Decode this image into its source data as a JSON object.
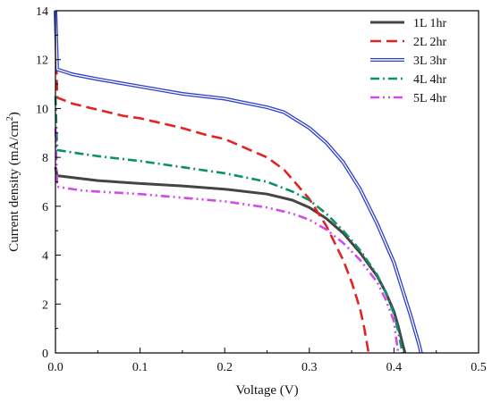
{
  "chart_data": {
    "type": "line",
    "xlabel": "Voltage (V)",
    "ylabel": "Current density (mA/cm²)",
    "ylabel_parts": {
      "text": "Current density (mA/cm",
      "superscript": "2",
      "suffix": ")"
    },
    "xlim": [
      0,
      0.5
    ],
    "ylim": [
      0,
      14
    ],
    "x_ticks": [
      0,
      0.1,
      0.2,
      0.3,
      0.4,
      0.5
    ],
    "x_tick_labels": [
      "0.0",
      "0.1",
      "0.2",
      "0.3",
      "0.4",
      "0.5"
    ],
    "y_ticks": [
      0,
      2,
      4,
      6,
      8,
      10,
      12,
      14
    ],
    "y_tick_labels": [
      "0",
      "2",
      "4",
      "6",
      "8",
      "10",
      "12",
      "14"
    ],
    "grid": false,
    "legend_position": "top-right",
    "series": [
      {
        "name": "1L  1hr",
        "color": "#444444",
        "style": "solid",
        "spike_to": 7.6,
        "points": [
          [
            0,
            7.25
          ],
          [
            0.05,
            7.05
          ],
          [
            0.1,
            6.93
          ],
          [
            0.15,
            6.83
          ],
          [
            0.2,
            6.7
          ],
          [
            0.25,
            6.5
          ],
          [
            0.28,
            6.25
          ],
          [
            0.3,
            5.95
          ],
          [
            0.32,
            5.5
          ],
          [
            0.34,
            4.9
          ],
          [
            0.36,
            4.1
          ],
          [
            0.38,
            3.15
          ],
          [
            0.39,
            2.5
          ],
          [
            0.4,
            1.7
          ],
          [
            0.405,
            1.1
          ],
          [
            0.41,
            0.4
          ],
          [
            0.413,
            0
          ]
        ]
      },
      {
        "name": "2L  2hr",
        "color": "#e32222",
        "style": "dash",
        "spike_to": 13.8,
        "points": [
          [
            0,
            10.45
          ],
          [
            0.02,
            10.2
          ],
          [
            0.05,
            9.95
          ],
          [
            0.08,
            9.7
          ],
          [
            0.1,
            9.6
          ],
          [
            0.15,
            9.2
          ],
          [
            0.18,
            8.9
          ],
          [
            0.2,
            8.75
          ],
          [
            0.25,
            8.0
          ],
          [
            0.27,
            7.5
          ],
          [
            0.3,
            6.3
          ],
          [
            0.32,
            5.2
          ],
          [
            0.34,
            3.8
          ],
          [
            0.35,
            2.9
          ],
          [
            0.36,
            1.8
          ],
          [
            0.365,
            1.0
          ],
          [
            0.37,
            0
          ]
        ]
      },
      {
        "name": "3L  3hr",
        "color": "#2d3fd1",
        "style": "double",
        "spike_to": 14,
        "points": [
          [
            0,
            11.6
          ],
          [
            0.02,
            11.4
          ],
          [
            0.05,
            11.2
          ],
          [
            0.1,
            10.9
          ],
          [
            0.15,
            10.6
          ],
          [
            0.2,
            10.4
          ],
          [
            0.25,
            10.05
          ],
          [
            0.27,
            9.85
          ],
          [
            0.3,
            9.2
          ],
          [
            0.32,
            8.6
          ],
          [
            0.34,
            7.8
          ],
          [
            0.36,
            6.7
          ],
          [
            0.38,
            5.3
          ],
          [
            0.4,
            3.7
          ],
          [
            0.41,
            2.6
          ],
          [
            0.42,
            1.5
          ],
          [
            0.43,
            0.3
          ],
          [
            0.432,
            0
          ]
        ]
      },
      {
        "name": "4L  4hr",
        "color": "#0e8f6b",
        "style": "dashdot",
        "spike_to": 10.5,
        "points": [
          [
            0,
            8.3
          ],
          [
            0.03,
            8.15
          ],
          [
            0.05,
            8.05
          ],
          [
            0.1,
            7.85
          ],
          [
            0.15,
            7.6
          ],
          [
            0.2,
            7.35
          ],
          [
            0.25,
            7.0
          ],
          [
            0.28,
            6.6
          ],
          [
            0.3,
            6.25
          ],
          [
            0.32,
            5.7
          ],
          [
            0.34,
            5.0
          ],
          [
            0.36,
            4.2
          ],
          [
            0.38,
            3.2
          ],
          [
            0.39,
            2.5
          ],
          [
            0.4,
            1.6
          ],
          [
            0.405,
            0.9
          ],
          [
            0.41,
            0
          ]
        ]
      },
      {
        "name": "5L  4hr",
        "color": "#d14bea",
        "style": "dashdotdot",
        "spike_to": 9.2,
        "points": [
          [
            0,
            6.8
          ],
          [
            0.03,
            6.65
          ],
          [
            0.05,
            6.6
          ],
          [
            0.1,
            6.5
          ],
          [
            0.15,
            6.35
          ],
          [
            0.2,
            6.2
          ],
          [
            0.25,
            5.95
          ],
          [
            0.28,
            5.7
          ],
          [
            0.3,
            5.45
          ],
          [
            0.32,
            5.05
          ],
          [
            0.34,
            4.5
          ],
          [
            0.36,
            3.8
          ],
          [
            0.38,
            2.9
          ],
          [
            0.39,
            2.2
          ],
          [
            0.4,
            1.3
          ],
          [
            0.403,
            0.5
          ],
          [
            0.405,
            0
          ]
        ]
      }
    ]
  }
}
